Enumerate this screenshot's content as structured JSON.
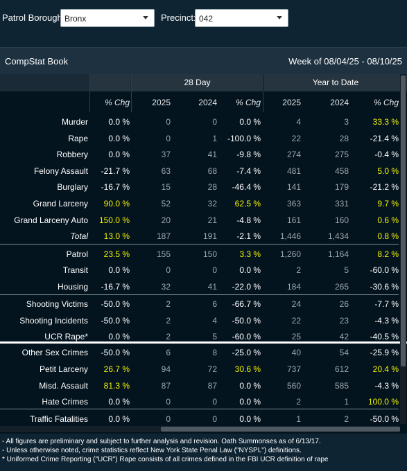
{
  "filters": {
    "borough_label": "Patrol Borough:",
    "borough_value": "Bronx",
    "precinct_label": "Precinct:",
    "precinct_value": "042"
  },
  "book": {
    "title": "CompStat Book",
    "week": "Week of 08/04/25 - 08/10/25",
    "group_28": "28 Day",
    "group_ytd": "Year to Date",
    "columns": [
      "% Chg",
      "2025",
      "2024",
      "% Chg",
      "2025",
      "2024",
      "% Chg"
    ]
  },
  "rows": [
    {
      "label": "Murder",
      "wk": "0.0 %",
      "d25": "0",
      "d24": "0",
      "dchg": "0.0 %",
      "y25": "4",
      "y24": "3",
      "ychg": "33.3 %"
    },
    {
      "label": "Rape",
      "wk": "0.0 %",
      "d25": "0",
      "d24": "1",
      "dchg": "-100.0 %",
      "y25": "22",
      "y24": "28",
      "ychg": "-21.4 %"
    },
    {
      "label": "Robbery",
      "wk": "0.0 %",
      "d25": "37",
      "d24": "41",
      "dchg": "-9.8 %",
      "y25": "274",
      "y24": "275",
      "ychg": "-0.4 %"
    },
    {
      "label": "Felony Assault",
      "wk": "-21.7 %",
      "d25": "63",
      "d24": "68",
      "dchg": "-7.4 %",
      "y25": "481",
      "y24": "458",
      "ychg": "5.0 %"
    },
    {
      "label": "Burglary",
      "wk": "-16.7 %",
      "d25": "15",
      "d24": "28",
      "dchg": "-46.4 %",
      "y25": "141",
      "y24": "179",
      "ychg": "-21.2 %"
    },
    {
      "label": "Grand Larceny",
      "wk": "90.0 %",
      "d25": "52",
      "d24": "32",
      "dchg": "62.5 %",
      "y25": "363",
      "y24": "331",
      "ychg": "9.7 %"
    },
    {
      "label": "Grand Larceny Auto",
      "wk": "150.0 %",
      "d25": "20",
      "d24": "21",
      "dchg": "-4.8 %",
      "y25": "161",
      "y24": "160",
      "ychg": "0.6 %"
    },
    {
      "label": "Total",
      "wk": "13.0 %",
      "d25": "187",
      "d24": "191",
      "dchg": "-2.1 %",
      "y25": "1,446",
      "y24": "1,434",
      "ychg": "0.8 %"
    },
    {
      "label": "Patrol",
      "wk": "23.5 %",
      "d25": "155",
      "d24": "150",
      "dchg": "3.3 %",
      "y25": "1,260",
      "y24": "1,164",
      "ychg": "8.2 %"
    },
    {
      "label": "Transit",
      "wk": "0.0 %",
      "d25": "0",
      "d24": "0",
      "dchg": "0.0 %",
      "y25": "2",
      "y24": "5",
      "ychg": "-60.0 %"
    },
    {
      "label": "Housing",
      "wk": "-16.7 %",
      "d25": "32",
      "d24": "41",
      "dchg": "-22.0 %",
      "y25": "184",
      "y24": "265",
      "ychg": "-30.6 %"
    },
    {
      "label": "Shooting Victims",
      "wk": "-50.0 %",
      "d25": "2",
      "d24": "6",
      "dchg": "-66.7 %",
      "y25": "24",
      "y24": "26",
      "ychg": "-7.7 %"
    },
    {
      "label": "Shooting Incidents",
      "wk": "-50.0 %",
      "d25": "2",
      "d24": "4",
      "dchg": "-50.0 %",
      "y25": "22",
      "y24": "23",
      "ychg": "-4.3 %"
    },
    {
      "label": "UCR Rape*",
      "wk": "0.0 %",
      "d25": "2",
      "d24": "5",
      "dchg": "-60.0 %",
      "y25": "25",
      "y24": "42",
      "ychg": "-40.5 %"
    },
    {
      "label": "Other Sex Crimes",
      "wk": "-50.0 %",
      "d25": "6",
      "d24": "8",
      "dchg": "-25.0 %",
      "y25": "40",
      "y24": "54",
      "ychg": "-25.9 %"
    },
    {
      "label": "Petit Larceny",
      "wk": "26.7 %",
      "d25": "94",
      "d24": "72",
      "dchg": "30.6 %",
      "y25": "737",
      "y24": "612",
      "ychg": "20.4 %"
    },
    {
      "label": "Misd. Assault",
      "wk": "81.3 %",
      "d25": "87",
      "d24": "87",
      "dchg": "0.0 %",
      "y25": "560",
      "y24": "585",
      "ychg": "-4.3 %"
    },
    {
      "label": "Hate Crimes",
      "wk": "0.0 %",
      "d25": "0",
      "d24": "0",
      "dchg": "0.0 %",
      "y25": "2",
      "y24": "1",
      "ychg": "100.0 %"
    },
    {
      "label": "Traffic Fatalities",
      "wk": "0.0 %",
      "d25": "0",
      "d24": "0",
      "dchg": "0.0 %",
      "y25": "1",
      "y24": "2",
      "ychg": "-50.0 %"
    }
  ],
  "highlights": {
    "wk": [
      5,
      6,
      7,
      8,
      15,
      16
    ],
    "dchg": [
      5,
      8,
      15
    ],
    "ychg": [
      0,
      3,
      5,
      6,
      7,
      8,
      15,
      17
    ]
  },
  "colors": {
    "highlight": "#f2f200",
    "background": "#04141f",
    "header": "#1d3140"
  },
  "footnotes": [
    "- All figures are preliminary and subject to further analysis and revision. Oath Summonses as of 6/13/17.",
    "- Unless otherwise noted, crime statistics reflect New York State Penal Law (\"NYSPL\") definitions.",
    "* Uniformed Crime Reporting (\"UCR\") Rape consists of all crimes defined in the FBI UCR definition of rape"
  ]
}
